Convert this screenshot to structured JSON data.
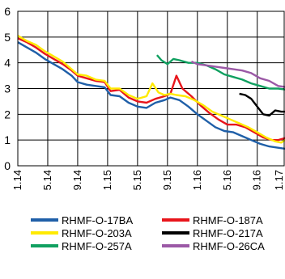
{
  "chart_data": {
    "type": "line",
    "title": "",
    "xlabel": "",
    "ylabel": "",
    "ylim": [
      0,
      6
    ],
    "yticks": [
      0,
      1,
      2,
      3,
      4,
      5,
      6
    ],
    "x_tick_labels": [
      "1.14",
      "5.14",
      "9.14",
      "1.15",
      "5.15",
      "9.15",
      "1.16",
      "5.16",
      "9.16",
      "1.17"
    ],
    "grid": true,
    "legend_position": "bottom",
    "series": [
      {
        "name": "RHMF-O-17BA",
        "color": "#1f5fa8",
        "points": [
          [
            0,
            4.8
          ],
          [
            0.3,
            4.6
          ],
          [
            0.6,
            4.4
          ],
          [
            0.9,
            4.15
          ],
          [
            1.2,
            3.95
          ],
          [
            1.5,
            3.75
          ],
          [
            1.8,
            3.5
          ],
          [
            2.0,
            3.25
          ],
          [
            2.3,
            3.15
          ],
          [
            2.6,
            3.1
          ],
          [
            2.9,
            3.05
          ],
          [
            3.1,
            2.75
          ],
          [
            3.4,
            2.7
          ],
          [
            3.7,
            2.45
          ],
          [
            4.0,
            2.3
          ],
          [
            4.3,
            2.25
          ],
          [
            4.6,
            2.45
          ],
          [
            4.9,
            2.55
          ],
          [
            5.1,
            2.65
          ],
          [
            5.4,
            2.55
          ],
          [
            5.7,
            2.3
          ],
          [
            6.0,
            2.0
          ],
          [
            6.3,
            1.75
          ],
          [
            6.6,
            1.5
          ],
          [
            6.9,
            1.35
          ],
          [
            7.2,
            1.3
          ],
          [
            7.5,
            1.15
          ],
          [
            7.8,
            1.0
          ],
          [
            8.1,
            0.85
          ],
          [
            8.4,
            0.75
          ],
          [
            8.7,
            0.7
          ],
          [
            9.0,
            0.65
          ]
        ]
      },
      {
        "name": "RHMF-O-187A",
        "color": "#e8151b",
        "points": [
          [
            0,
            4.95
          ],
          [
            0.3,
            4.8
          ],
          [
            0.6,
            4.6
          ],
          [
            0.9,
            4.35
          ],
          [
            1.2,
            4.15
          ],
          [
            1.5,
            3.95
          ],
          [
            1.8,
            3.7
          ],
          [
            2.0,
            3.5
          ],
          [
            2.3,
            3.4
          ],
          [
            2.6,
            3.3
          ],
          [
            2.9,
            3.25
          ],
          [
            3.1,
            2.9
          ],
          [
            3.4,
            2.95
          ],
          [
            3.7,
            2.65
          ],
          [
            4.0,
            2.5
          ],
          [
            4.3,
            2.45
          ],
          [
            4.6,
            2.6
          ],
          [
            4.9,
            2.7
          ],
          [
            5.1,
            2.8
          ],
          [
            5.3,
            3.5
          ],
          [
            5.5,
            3.0
          ],
          [
            5.8,
            2.7
          ],
          [
            6.1,
            2.35
          ],
          [
            6.4,
            2.05
          ],
          [
            6.7,
            1.8
          ],
          [
            7.0,
            1.6
          ],
          [
            7.3,
            1.6
          ],
          [
            7.6,
            1.5
          ],
          [
            7.9,
            1.3
          ],
          [
            8.2,
            1.1
          ],
          [
            8.5,
            1.0
          ],
          [
            8.7,
            1.0
          ],
          [
            9.0,
            1.1
          ]
        ]
      },
      {
        "name": "RHMF-O-203A",
        "color": "#ffea00",
        "points": [
          [
            0,
            5.05
          ],
          [
            0.3,
            4.85
          ],
          [
            0.6,
            4.7
          ],
          [
            0.9,
            4.45
          ],
          [
            1.2,
            4.25
          ],
          [
            1.5,
            4.05
          ],
          [
            1.8,
            3.75
          ],
          [
            2.0,
            3.55
          ],
          [
            2.3,
            3.5
          ],
          [
            2.6,
            3.35
          ],
          [
            2.9,
            3.3
          ],
          [
            3.1,
            3.0
          ],
          [
            3.4,
            3.0
          ],
          [
            3.7,
            2.75
          ],
          [
            4.0,
            2.6
          ],
          [
            4.3,
            2.7
          ],
          [
            4.5,
            3.2
          ],
          [
            4.7,
            2.85
          ],
          [
            4.9,
            2.75
          ],
          [
            5.1,
            2.8
          ],
          [
            5.3,
            2.75
          ],
          [
            5.6,
            2.7
          ],
          [
            5.9,
            2.55
          ],
          [
            6.2,
            2.35
          ],
          [
            6.5,
            2.1
          ],
          [
            6.8,
            1.95
          ],
          [
            7.1,
            1.8
          ],
          [
            7.4,
            1.65
          ],
          [
            7.7,
            1.5
          ],
          [
            8.0,
            1.3
          ],
          [
            8.3,
            1.1
          ],
          [
            8.6,
            0.95
          ],
          [
            8.8,
            0.9
          ],
          [
            9.0,
            1.05
          ]
        ]
      },
      {
        "name": "RHMF-O-217A",
        "color": "#000000",
        "points": [
          [
            7.4,
            2.8
          ],
          [
            7.6,
            2.75
          ],
          [
            7.8,
            2.6
          ],
          [
            8.0,
            2.3
          ],
          [
            8.2,
            2.0
          ],
          [
            8.4,
            1.95
          ],
          [
            8.6,
            2.15
          ],
          [
            8.8,
            2.1
          ],
          [
            9.0,
            2.1
          ]
        ]
      },
      {
        "name": "RHMF-O-257A",
        "color": "#10a060",
        "points": [
          [
            4.65,
            4.3
          ],
          [
            4.8,
            4.1
          ],
          [
            5.0,
            3.95
          ],
          [
            5.2,
            4.15
          ],
          [
            5.4,
            4.1
          ],
          [
            5.7,
            4.0
          ],
          [
            6.0,
            4.0
          ],
          [
            6.3,
            3.9
          ],
          [
            6.6,
            3.75
          ],
          [
            6.9,
            3.55
          ],
          [
            7.2,
            3.45
          ],
          [
            7.5,
            3.35
          ],
          [
            7.8,
            3.2
          ],
          [
            8.1,
            3.1
          ],
          [
            8.4,
            3.0
          ],
          [
            8.7,
            3.0
          ],
          [
            9.0,
            2.95
          ]
        ]
      },
      {
        "name": "RHMF-O-26CA",
        "color": "#9b59a6",
        "points": [
          [
            5.8,
            4.05
          ],
          [
            6.0,
            3.95
          ],
          [
            6.3,
            3.9
          ],
          [
            6.6,
            3.85
          ],
          [
            6.9,
            3.8
          ],
          [
            7.2,
            3.75
          ],
          [
            7.5,
            3.7
          ],
          [
            7.8,
            3.6
          ],
          [
            8.1,
            3.4
          ],
          [
            8.4,
            3.3
          ],
          [
            8.7,
            3.1
          ],
          [
            9.0,
            3.05
          ]
        ]
      }
    ]
  }
}
